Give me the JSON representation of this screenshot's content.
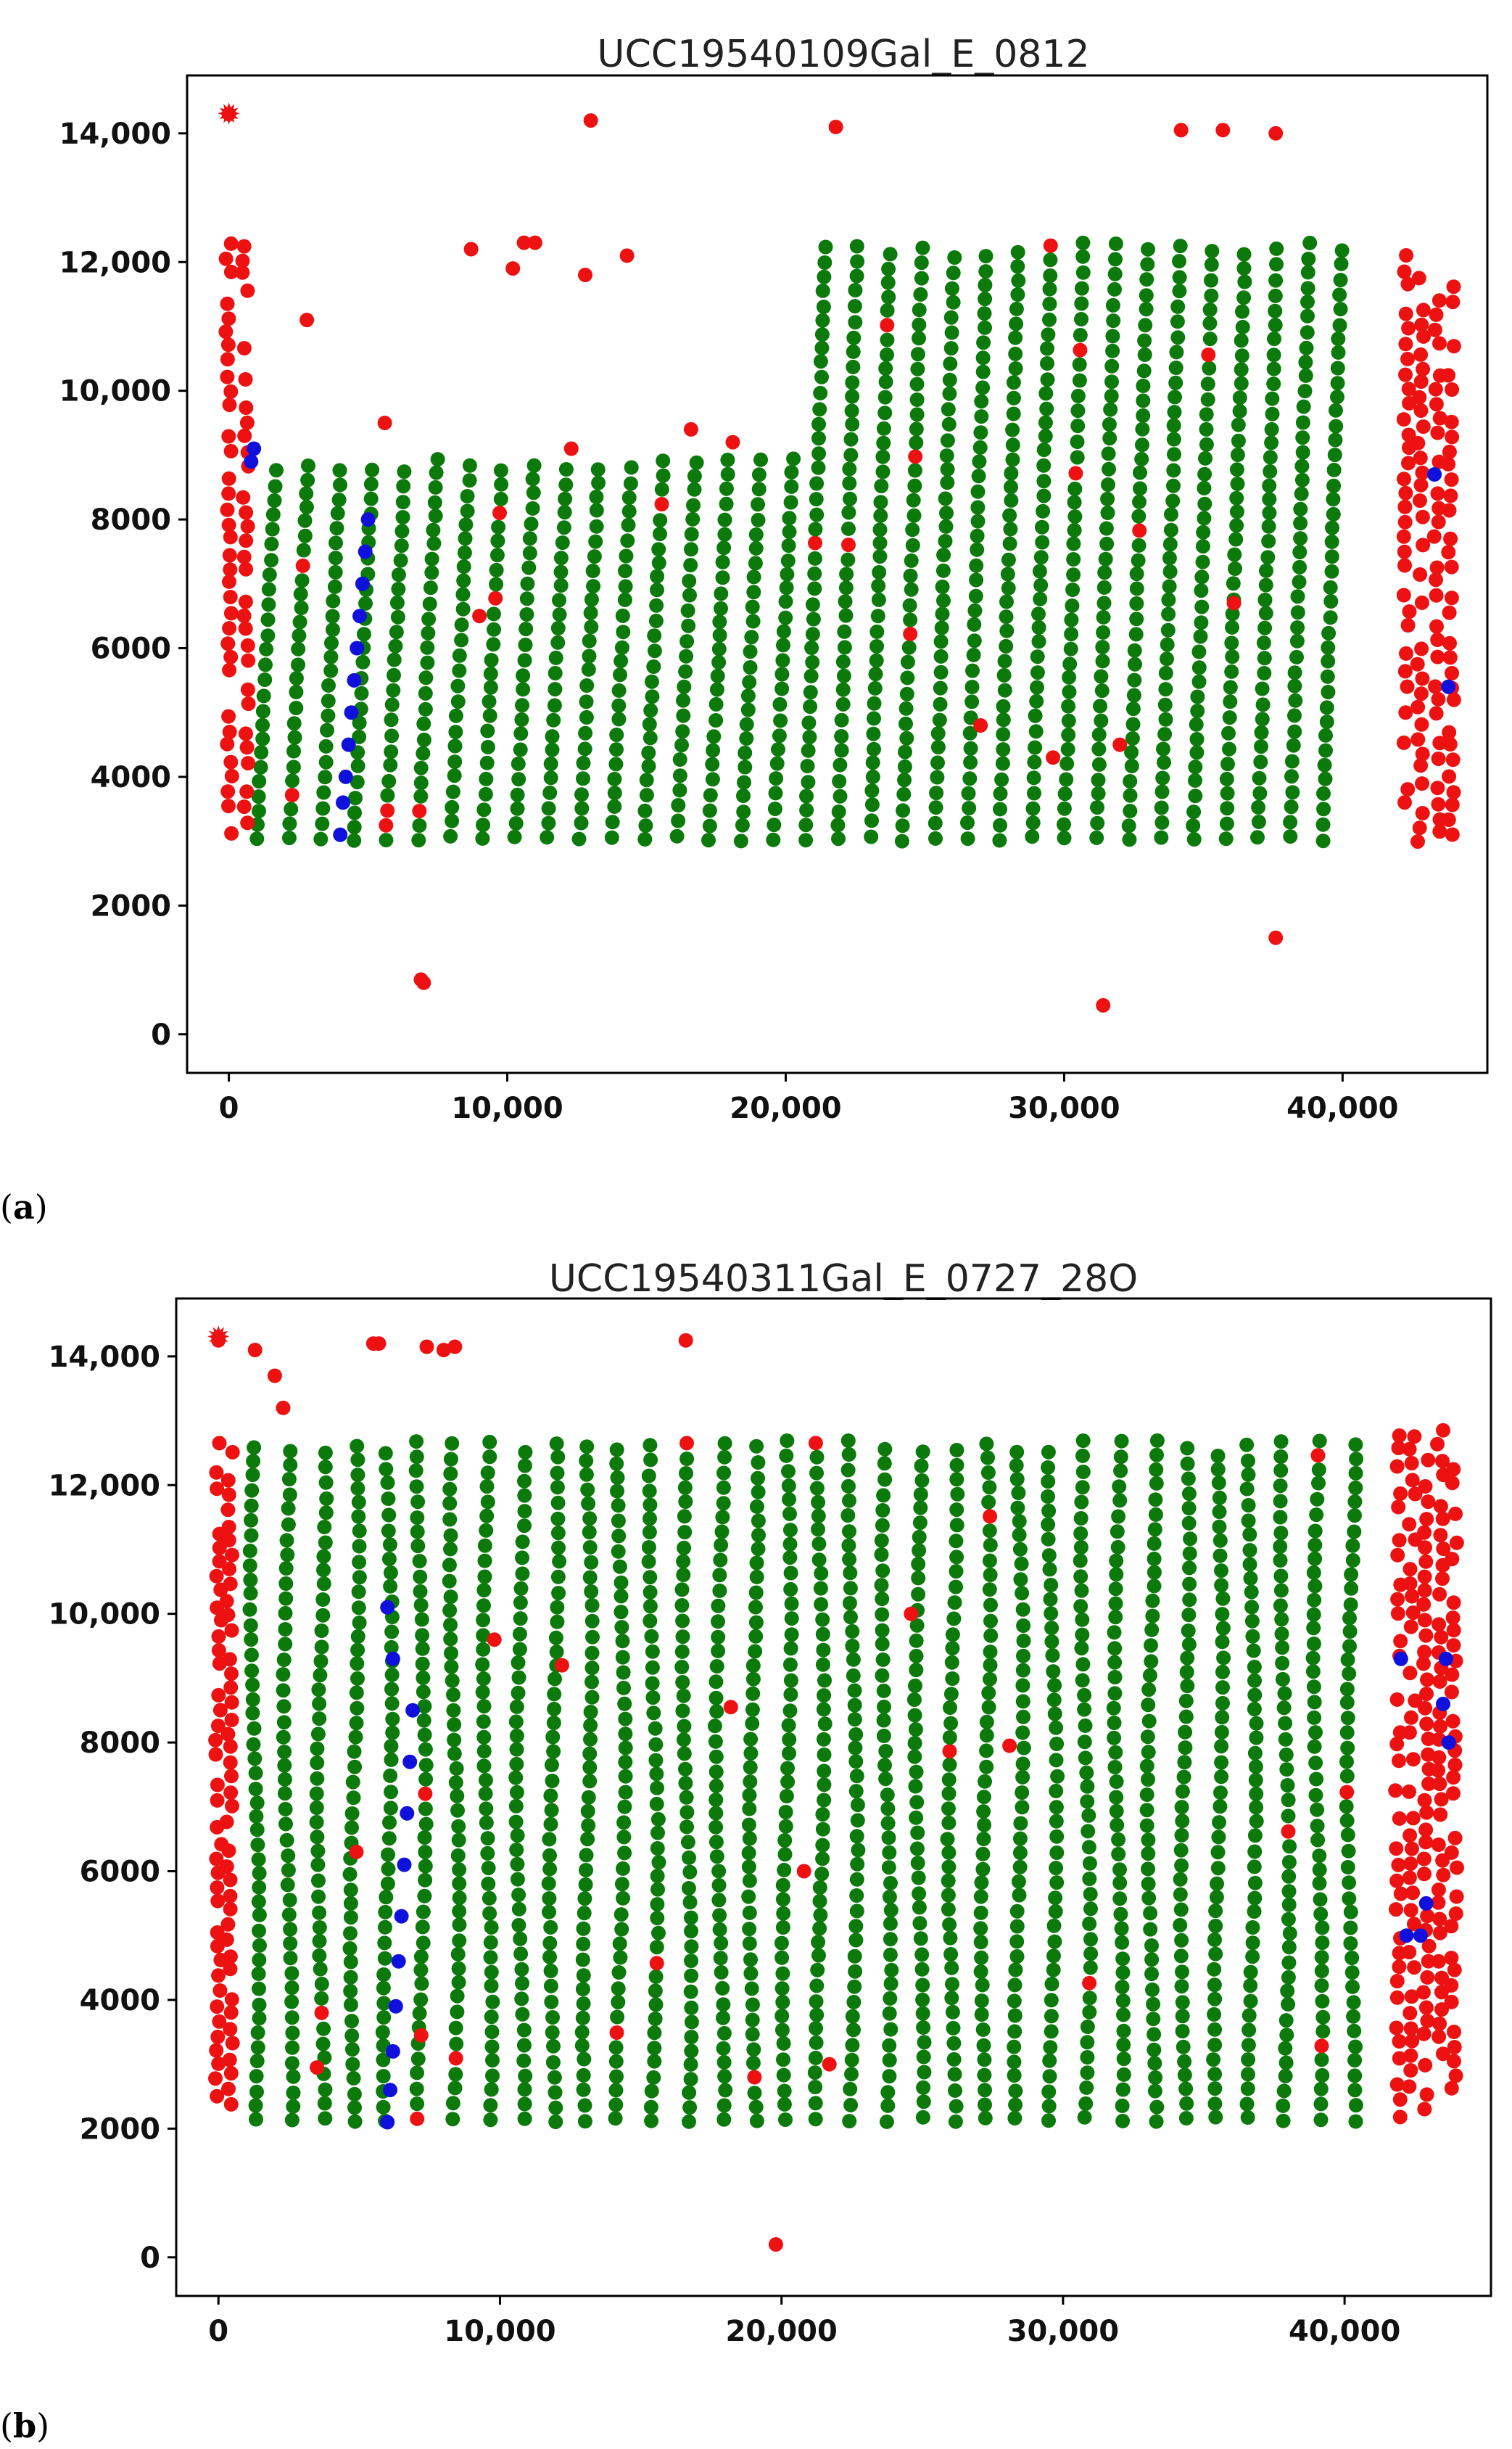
{
  "figure": {
    "panel_a_label": "a",
    "panel_b_label": "b"
  },
  "colors": {
    "red": "#ee1111",
    "green": "#0b7a0b",
    "blue": "#1010dd",
    "axes": "#000000"
  },
  "chart_data": [
    {
      "type": "scatter",
      "title": "UCC19540109Gal_E_0812",
      "xlim": [
        -1500,
        45200
      ],
      "ylim": [
        -600,
        14900
      ],
      "xticks": [
        0,
        10000,
        20000,
        30000,
        40000
      ],
      "xtick_labels": [
        "0",
        "10,000",
        "20,000",
        "30,000",
        "40,000"
      ],
      "yticks": [
        0,
        2000,
        4000,
        6000,
        8000,
        10000,
        12000,
        14000
      ],
      "ytick_labels": [
        "0",
        "2000",
        "4000",
        "6000",
        "8000",
        "10,000",
        "12,000",
        "14,000"
      ],
      "green_columns": {
        "count": 34,
        "x_start": 1000,
        "x_step": 1160,
        "y_bottom": 3000,
        "y_top_left": 8950,
        "y_top_right": 12300,
        "step_at_x": 19800,
        "lean": 700,
        "point_spacing": 230
      },
      "blue_points": {
        "x": [
          800,
          900,
          4000,
          4100,
          4200,
          4300,
          4400,
          4500,
          4600,
          4700,
          4800,
          4900,
          5000,
          43300,
          43800
        ],
        "y": [
          8900,
          9100,
          3100,
          3600,
          4000,
          4500,
          5000,
          5500,
          6000,
          6500,
          7000,
          7500,
          8000,
          8700,
          5400
        ]
      },
      "red_extra": {
        "x": [
          0,
          13000,
          21800,
          34200,
          35700,
          37600,
          6900,
          7000,
          31400,
          37600,
          2800,
          5600,
          8700,
          10200,
          10600,
          11000,
          12800,
          14300,
          12300,
          16600,
          18100,
          9000,
          27000,
          29600,
          32000,
          36100
        ],
        "y": [
          14300,
          14200,
          14100,
          14050,
          14050,
          14000,
          850,
          800,
          450,
          1500,
          11100,
          9500,
          12200,
          11900,
          12300,
          12300,
          11800,
          12100,
          9100,
          9400,
          9200,
          6500,
          4800,
          4300,
          4500,
          6700
        ]
      }
    },
    {
      "type": "scatter",
      "title": "UCC19540311Gal_E_0727_28O",
      "xlim": [
        -1500,
        45200
      ],
      "ylim": [
        -600,
        14900
      ],
      "xticks": [
        0,
        10000,
        20000,
        30000,
        40000
      ],
      "xtick_labels": [
        "0",
        "10,000",
        "20,000",
        "30,000",
        "40,000"
      ],
      "yticks": [
        0,
        2000,
        4000,
        6000,
        8000,
        10000,
        12000,
        14000
      ],
      "ytick_labels": [
        "0",
        "2000",
        "4000",
        "6000",
        "8000",
        "10,000",
        "12,000",
        "14,000"
      ],
      "green_columns": {
        "count": 34,
        "x_start": 1300,
        "x_step": 1180,
        "y_bottom": 2100,
        "y_top_left": 12700,
        "y_top_right": 12800,
        "step_at_x": 99999,
        "lean": 0,
        "point_spacing": 230
      },
      "blue_points": {
        "x": [
          6000,
          6100,
          6200,
          6300,
          6400,
          6500,
          6600,
          6700,
          6800,
          6900,
          6200,
          6000,
          42000,
          43600,
          43500,
          43700,
          42200,
          42700,
          42900
        ],
        "y": [
          2100,
          2600,
          3200,
          3900,
          4600,
          5300,
          6100,
          6900,
          7700,
          8500,
          9300,
          10100,
          9300,
          9300,
          8600,
          8000,
          5000,
          5000,
          5500
        ]
      },
      "red_extra": {
        "x": [
          0,
          1300,
          2000,
          2300,
          5500,
          5700,
          7400,
          8000,
          8400,
          16600,
          19800,
          4900,
          9800,
          12200,
          18200,
          20800,
          21700,
          24600,
          28100,
          7200,
          3500
        ],
        "y": [
          14250,
          14100,
          13700,
          13200,
          14200,
          14200,
          14150,
          14100,
          14150,
          14250,
          200,
          6300,
          9600,
          9200,
          8550,
          6000,
          3000,
          10000,
          7950,
          3450,
          2950
        ]
      }
    }
  ]
}
